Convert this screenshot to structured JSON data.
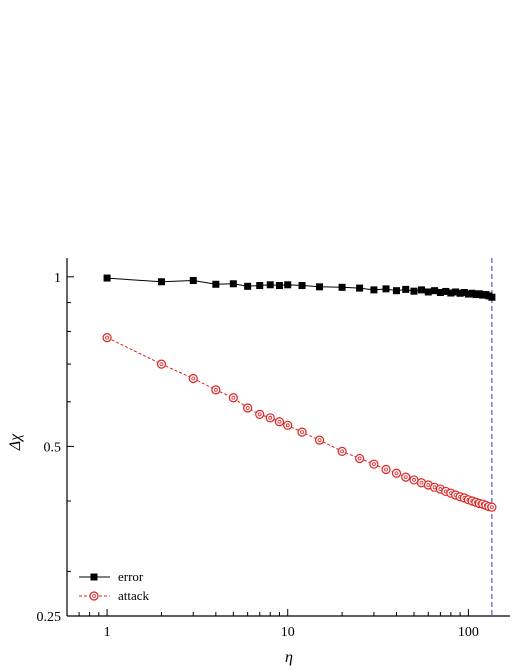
{
  "chart_data": {
    "type": "scatter",
    "xlabel": "η",
    "ylabel": "Δχ",
    "x_scale": "log",
    "y_scale": "log",
    "xlim": [
      0.6,
      170
    ],
    "ylim": [
      0.25,
      1.08
    ],
    "x_ticks": [
      {
        "value": 1,
        "label": "1"
      },
      {
        "value": 10,
        "label": "10"
      },
      {
        "value": 100,
        "label": "100"
      }
    ],
    "y_ticks": [
      {
        "value": 0.25,
        "label": "0.25"
      },
      {
        "value": 0.5,
        "label": "0.5"
      },
      {
        "value": 1,
        "label": "1"
      }
    ],
    "grid": false,
    "legend_position": "bottom-left",
    "vertical_line": {
      "x": 135,
      "color": "#3333cc",
      "style": "dashed"
    },
    "series": [
      {
        "name": "error",
        "color": "#000000",
        "marker": "filled-square",
        "line_style": "solid",
        "x": [
          1,
          2,
          3,
          4,
          5,
          6,
          7,
          8,
          9,
          10,
          12,
          15,
          20,
          25,
          30,
          35,
          40,
          45,
          50,
          55,
          60,
          65,
          70,
          75,
          80,
          85,
          90,
          95,
          100,
          105,
          110,
          115,
          120,
          125,
          130,
          135
        ],
        "y": [
          0.995,
          0.98,
          0.985,
          0.97,
          0.972,
          0.962,
          0.965,
          0.968,
          0.965,
          0.968,
          0.965,
          0.96,
          0.958,
          0.955,
          0.948,
          0.952,
          0.945,
          0.95,
          0.943,
          0.948,
          0.94,
          0.945,
          0.938,
          0.942,
          0.936,
          0.94,
          0.935,
          0.938,
          0.932,
          0.935,
          0.93,
          0.933,
          0.928,
          0.93,
          0.925,
          0.92
        ]
      },
      {
        "name": "attack",
        "color": "#e02020",
        "marker": "open-circle",
        "line_style": "dashed",
        "x": [
          1,
          2,
          3,
          4,
          5,
          6,
          7,
          8,
          9,
          10,
          12,
          15,
          20,
          25,
          30,
          35,
          40,
          45,
          50,
          55,
          60,
          65,
          70,
          75,
          80,
          85,
          90,
          95,
          100,
          105,
          110,
          115,
          120,
          125,
          130,
          135
        ],
        "y": [
          0.78,
          0.7,
          0.66,
          0.63,
          0.61,
          0.585,
          0.57,
          0.562,
          0.553,
          0.545,
          0.53,
          0.513,
          0.49,
          0.476,
          0.465,
          0.455,
          0.448,
          0.441,
          0.436,
          0.431,
          0.427,
          0.423,
          0.42,
          0.416,
          0.413,
          0.41,
          0.407,
          0.405,
          0.402,
          0.4,
          0.398,
          0.396,
          0.395,
          0.393,
          0.391,
          0.39
        ]
      }
    ]
  }
}
